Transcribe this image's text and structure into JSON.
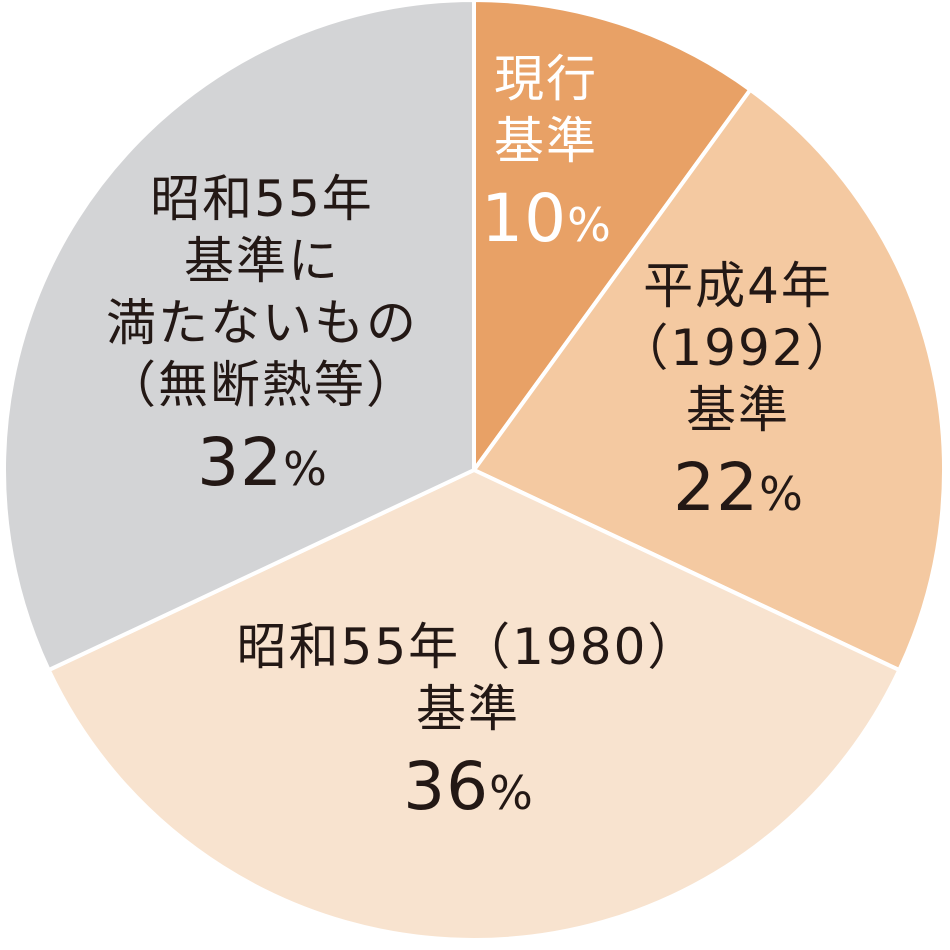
{
  "chart_data": {
    "type": "pie",
    "start_angle_deg": 0,
    "direction": "clockwise",
    "slices": [
      {
        "label_lines": [
          "現行",
          "基準"
        ],
        "value": 10,
        "value_text": "10",
        "unit": "%",
        "color": "#e8a166",
        "text_color": "#ffffff"
      },
      {
        "label_lines": [
          "平成4年",
          "（1992）",
          "基準"
        ],
        "value": 22,
        "value_text": "22",
        "unit": "%",
        "color": "#f4c9a1",
        "text_color": "#231815"
      },
      {
        "label_lines": [
          "昭和55年（1980）",
          "基準"
        ],
        "value": 36,
        "value_text": "36",
        "unit": "%",
        "color": "#f8e3cf",
        "text_color": "#231815"
      },
      {
        "label_lines": [
          "昭和55年",
          "基準に",
          "満たないもの",
          "（無断熱等）"
        ],
        "value": 32,
        "value_text": "32",
        "unit": "%",
        "color": "#d3d4d6",
        "text_color": "#231815"
      }
    ]
  }
}
